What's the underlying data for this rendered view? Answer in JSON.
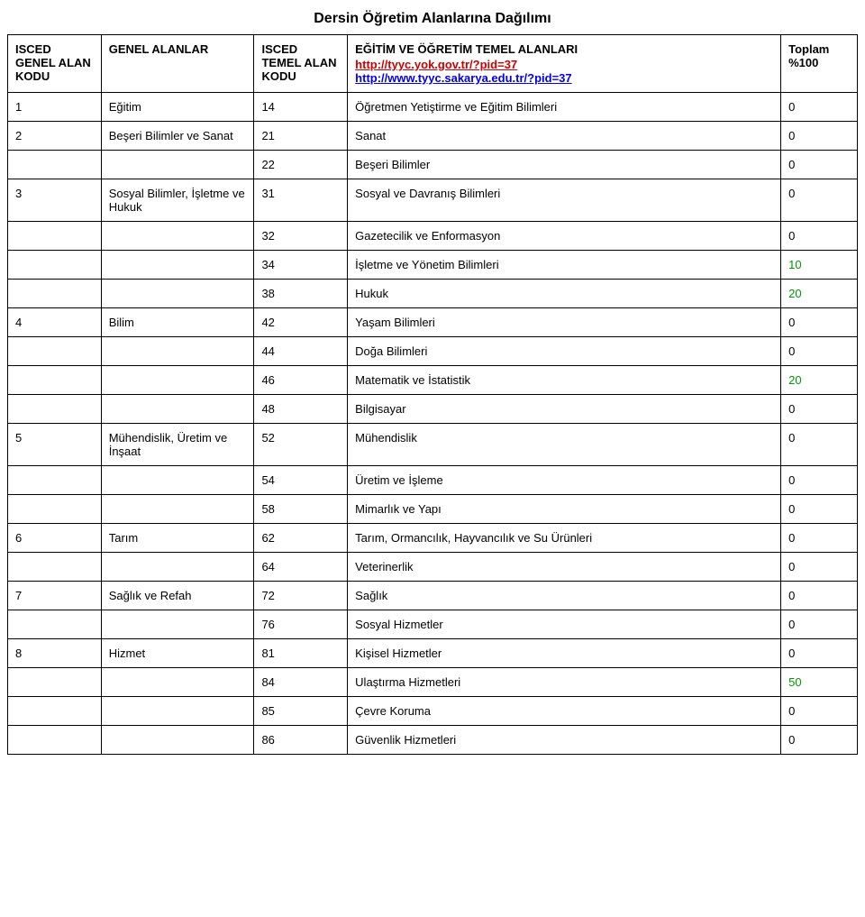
{
  "title": "Dersin Öğretim Alanlarına Dağılımı",
  "headers": {
    "col1": "ISCED GENEL ALAN KODU",
    "col2": "GENEL ALANLAR",
    "col3": "ISCED TEMEL ALAN KODU",
    "col4_title": "EĞİTİM VE ÖĞRETİM TEMEL ALANLARI",
    "col4_link1_text": "http://tyyc.yok.gov.tr/?pid=37",
    "col4_link2_text": "http://www.tyyc.sakarya.edu.tr/?pid=37",
    "col5": "Toplam %100"
  },
  "rows": [
    {
      "c1": "1",
      "c2": "Eğitim",
      "c3": "14",
      "c4": "Öğretmen Yetiştirme ve Eğitim Bilimleri",
      "c5": "0",
      "c5_color": "#000000"
    },
    {
      "c1": "2",
      "c2": "Beşeri Bilimler ve Sanat",
      "c3": "21",
      "c4": "Sanat",
      "c5": "0",
      "c5_color": "#000000"
    },
    {
      "c1": "",
      "c2": "",
      "c3": "22",
      "c4": "Beşeri Bilimler",
      "c5": "0",
      "c5_color": "#000000"
    },
    {
      "c1": "3",
      "c2": "Sosyal Bilimler, İşletme ve Hukuk",
      "c3": "31",
      "c4": "Sosyal ve Davranış Bilimleri",
      "c5": "0",
      "c5_color": "#000000"
    },
    {
      "c1": "",
      "c2": "",
      "c3": "32",
      "c4": "Gazetecilik ve Enformasyon",
      "c5": "0",
      "c5_color": "#000000"
    },
    {
      "c1": "",
      "c2": "",
      "c3": "34",
      "c4": "İşletme ve Yönetim Bilimleri",
      "c5": "10",
      "c5_color": "#009900"
    },
    {
      "c1": "",
      "c2": "",
      "c3": "38",
      "c4": "Hukuk",
      "c5": "20",
      "c5_color": "#009900"
    },
    {
      "c1": "4",
      "c2": "Bilim",
      "c3": "42",
      "c4": "Yaşam Bilimleri",
      "c5": "0",
      "c5_color": "#000000"
    },
    {
      "c1": "",
      "c2": "",
      "c3": "44",
      "c4": "Doğa Bilimleri",
      "c5": "0",
      "c5_color": "#000000"
    },
    {
      "c1": "",
      "c2": "",
      "c3": "46",
      "c4": "Matematik ve İstatistik",
      "c5": "20",
      "c5_color": "#009900"
    },
    {
      "c1": "",
      "c2": "",
      "c3": "48",
      "c4": "Bilgisayar",
      "c5": "0",
      "c5_color": "#000000"
    },
    {
      "c1": "5",
      "c2": "Mühendislik, Üretim ve İnşaat",
      "c3": "52",
      "c4": "Mühendislik",
      "c5": "0",
      "c5_color": "#000000"
    },
    {
      "c1": "",
      "c2": "",
      "c3": "54",
      "c4": "Üretim ve İşleme",
      "c5": "0",
      "c5_color": "#000000"
    },
    {
      "c1": "",
      "c2": "",
      "c3": "58",
      "c4": "Mimarlık ve Yapı",
      "c5": "0",
      "c5_color": "#000000"
    },
    {
      "c1": "6",
      "c2": "Tarım",
      "c3": "62",
      "c4": "Tarım, Ormancılık, Hayvancılık ve Su Ürünleri",
      "c5": "0",
      "c5_color": "#000000"
    },
    {
      "c1": "",
      "c2": "",
      "c3": "64",
      "c4": "Veterinerlik",
      "c5": "0",
      "c5_color": "#000000"
    },
    {
      "c1": "7",
      "c2": "Sağlık ve Refah",
      "c3": "72",
      "c4": "Sağlık",
      "c5": "0",
      "c5_color": "#000000"
    },
    {
      "c1": "",
      "c2": "",
      "c3": "76",
      "c4": "Sosyal Hizmetler",
      "c5": "0",
      "c5_color": "#000000"
    },
    {
      "c1": "8",
      "c2": "Hizmet",
      "c3": "81",
      "c4": "Kişisel Hizmetler",
      "c5": "0",
      "c5_color": "#000000"
    },
    {
      "c1": "",
      "c2": "",
      "c3": "84",
      "c4": "Ulaştırma Hizmetleri",
      "c5": "50",
      "c5_color": "#009900"
    },
    {
      "c1": "",
      "c2": "",
      "c3": "85",
      "c4": "Çevre Koruma",
      "c5": "0",
      "c5_color": "#000000"
    },
    {
      "c1": "",
      "c2": "",
      "c3": "86",
      "c4": "Güvenlik Hizmetleri",
      "c5": "0",
      "c5_color": "#000000"
    }
  ],
  "styling": {
    "background_color": "#ffffff",
    "border_color": "#000000",
    "text_color": "#000000",
    "link_color_red": "#cc0000",
    "link_color_blue": "#0000ee",
    "nonzero_color": "#009900",
    "font_size_body": 13,
    "font_size_title": 16,
    "font_family": "Verdana",
    "column_widths": [
      "11%",
      "18%",
      "11%",
      "51%",
      "9%"
    ]
  }
}
